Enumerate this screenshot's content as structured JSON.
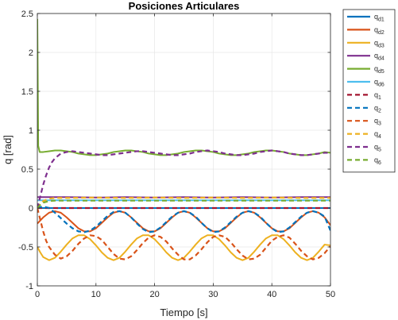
{
  "chart_data": {
    "type": "line",
    "title": "Posiciones Articulares",
    "xlabel": "Tiempo [s]",
    "ylabel": "q [rad]",
    "xlim": [
      0,
      50
    ],
    "ylim": [
      -1,
      2.5
    ],
    "xticks": [
      0,
      10,
      20,
      30,
      40,
      50
    ],
    "xtick_labels": [
      "0",
      "10",
      "20",
      "30",
      "40",
      "50"
    ],
    "yticks": [
      -1,
      -0.5,
      0,
      0.5,
      1,
      1.5,
      2,
      2.5
    ],
    "ytick_labels": [
      "-1",
      "-0.5",
      "0",
      "0.5",
      "1",
      "1.5",
      "2",
      "2.5"
    ],
    "grid": true,
    "legend_position": "outside-right",
    "series": [
      {
        "name": "q",
        "sub": "d1",
        "color": "#0072BD",
        "style": "solid",
        "x": [
          0,
          50
        ],
        "y": [
          0,
          0
        ]
      },
      {
        "name": "q",
        "sub": "d2",
        "color": "#D95319",
        "style": "solid",
        "x": [
          0,
          0.5,
          1,
          2,
          3,
          4,
          5,
          6,
          7,
          8,
          9,
          10,
          11,
          12,
          13,
          14,
          15,
          16,
          17,
          18,
          19,
          20,
          21,
          22,
          23,
          24,
          25,
          26,
          27,
          28,
          29,
          30,
          31,
          32,
          33,
          34,
          35,
          36,
          37,
          38,
          39,
          40,
          41,
          42,
          43,
          44,
          45,
          46,
          47,
          48,
          49,
          50
        ],
        "y": [
          -0.2,
          -0.16,
          -0.12,
          -0.06,
          -0.04,
          -0.06,
          -0.12,
          -0.19,
          -0.26,
          -0.3,
          -0.3,
          -0.26,
          -0.19,
          -0.12,
          -0.06,
          -0.04,
          -0.06,
          -0.12,
          -0.19,
          -0.26,
          -0.3,
          -0.3,
          -0.26,
          -0.19,
          -0.12,
          -0.06,
          -0.04,
          -0.06,
          -0.12,
          -0.19,
          -0.26,
          -0.3,
          -0.3,
          -0.26,
          -0.19,
          -0.12,
          -0.06,
          -0.04,
          -0.06,
          -0.12,
          -0.19,
          -0.26,
          -0.3,
          -0.3,
          -0.26,
          -0.19,
          -0.12,
          -0.06,
          -0.04,
          -0.06,
          -0.12,
          -0.22
        ]
      },
      {
        "name": "q",
        "sub": "d3",
        "color": "#EDB120",
        "style": "solid",
        "x": [
          0,
          0.5,
          1,
          2,
          3,
          4,
          5,
          6,
          7,
          8,
          9,
          10,
          11,
          12,
          13,
          14,
          15,
          16,
          17,
          18,
          19,
          20,
          21,
          22,
          23,
          24,
          25,
          26,
          27,
          28,
          29,
          30,
          31,
          32,
          33,
          34,
          35,
          36,
          37,
          38,
          39,
          40,
          41,
          42,
          43,
          44,
          45,
          46,
          47,
          48,
          49,
          50
        ],
        "y": [
          -0.5,
          -0.57,
          -0.63,
          -0.67,
          -0.64,
          -0.56,
          -0.47,
          -0.39,
          -0.35,
          -0.35,
          -0.4,
          -0.48,
          -0.57,
          -0.64,
          -0.67,
          -0.64,
          -0.56,
          -0.47,
          -0.39,
          -0.35,
          -0.35,
          -0.4,
          -0.48,
          -0.57,
          -0.64,
          -0.67,
          -0.64,
          -0.56,
          -0.47,
          -0.39,
          -0.35,
          -0.35,
          -0.4,
          -0.48,
          -0.57,
          -0.64,
          -0.67,
          -0.64,
          -0.56,
          -0.47,
          -0.39,
          -0.35,
          -0.35,
          -0.4,
          -0.48,
          -0.57,
          -0.64,
          -0.67,
          -0.64,
          -0.56,
          -0.47,
          -0.48
        ]
      },
      {
        "name": "q",
        "sub": "d4",
        "color": "#7E2F8E",
        "style": "solid",
        "x": [
          0,
          5,
          10,
          15,
          20,
          25,
          30,
          35,
          40,
          45,
          50
        ],
        "y": [
          0.14,
          0.14,
          0.135,
          0.14,
          0.135,
          0.14,
          0.135,
          0.14,
          0.135,
          0.14,
          0.14
        ]
      },
      {
        "name": "q",
        "sub": "d5",
        "color": "#77AC30",
        "style": "solid",
        "x": [
          0,
          0.15,
          0.4,
          1,
          2,
          3,
          4,
          5,
          6,
          7,
          8,
          9,
          10,
          11,
          12,
          13,
          14,
          15,
          16,
          17,
          18,
          19,
          20,
          21,
          22,
          23,
          24,
          25,
          26,
          27,
          28,
          29,
          30,
          31,
          32,
          33,
          34,
          35,
          36,
          37,
          38,
          39,
          40,
          41,
          42,
          43,
          44,
          45,
          46,
          47,
          48,
          49,
          50
        ],
        "y": [
          2.43,
          0.8,
          0.72,
          0.72,
          0.73,
          0.74,
          0.74,
          0.73,
          0.72,
          0.7,
          0.69,
          0.68,
          0.68,
          0.69,
          0.7,
          0.72,
          0.73,
          0.74,
          0.74,
          0.73,
          0.72,
          0.7,
          0.69,
          0.68,
          0.68,
          0.69,
          0.7,
          0.72,
          0.73,
          0.74,
          0.74,
          0.73,
          0.72,
          0.7,
          0.69,
          0.68,
          0.68,
          0.69,
          0.7,
          0.72,
          0.73,
          0.74,
          0.74,
          0.73,
          0.72,
          0.7,
          0.69,
          0.68,
          0.68,
          0.69,
          0.7,
          0.72,
          0.71
        ]
      },
      {
        "name": "q",
        "sub": "d6",
        "color": "#4DBEEE",
        "style": "solid",
        "x": [
          0,
          10,
          20,
          30,
          40,
          50
        ],
        "y": [
          0.1,
          0.1,
          0.1,
          0.1,
          0.1,
          0.1
        ]
      },
      {
        "name": "q",
        "sub": "1",
        "color": "#A2142F",
        "style": "dashed",
        "x": [
          0,
          50
        ],
        "y": [
          0,
          0
        ]
      },
      {
        "name": "q",
        "sub": "2",
        "color": "#0072BD",
        "style": "dashed",
        "x": [
          0,
          1,
          2,
          3,
          4,
          5,
          6,
          7,
          8,
          9,
          10,
          11,
          12,
          13,
          14,
          15,
          16,
          17,
          18,
          19,
          20,
          21,
          22,
          23,
          24,
          25,
          26,
          27,
          28,
          29,
          30,
          31,
          32,
          33,
          34,
          35,
          36,
          37,
          38,
          39,
          40,
          41,
          42,
          43,
          44,
          45,
          46,
          47,
          48,
          49,
          50
        ],
        "y": [
          0,
          0.02,
          0.0,
          -0.06,
          -0.13,
          -0.2,
          -0.26,
          -0.3,
          -0.31,
          -0.29,
          -0.24,
          -0.17,
          -0.1,
          -0.05,
          -0.04,
          -0.06,
          -0.12,
          -0.2,
          -0.27,
          -0.31,
          -0.3,
          -0.25,
          -0.18,
          -0.11,
          -0.06,
          -0.04,
          -0.06,
          -0.11,
          -0.19,
          -0.26,
          -0.31,
          -0.3,
          -0.25,
          -0.18,
          -0.11,
          -0.06,
          -0.04,
          -0.06,
          -0.11,
          -0.19,
          -0.26,
          -0.31,
          -0.3,
          -0.25,
          -0.18,
          -0.11,
          -0.06,
          -0.04,
          -0.06,
          -0.11,
          -0.29
        ]
      },
      {
        "name": "q",
        "sub": "3",
        "color": "#D95319",
        "style": "dashed",
        "x": [
          0,
          0.5,
          1,
          1.5,
          2,
          3,
          4,
          5,
          6,
          7,
          8,
          9,
          10,
          11,
          12,
          13,
          14,
          15,
          16,
          17,
          18,
          19,
          20,
          21,
          22,
          23,
          24,
          25,
          26,
          27,
          28,
          29,
          30,
          31,
          32,
          33,
          34,
          35,
          36,
          37,
          38,
          39,
          40,
          41,
          42,
          43,
          44,
          45,
          46,
          47,
          48,
          49,
          50
        ],
        "y": [
          0,
          -0.15,
          -0.3,
          -0.42,
          -0.5,
          -0.6,
          -0.65,
          -0.62,
          -0.55,
          -0.46,
          -0.39,
          -0.35,
          -0.36,
          -0.41,
          -0.5,
          -0.59,
          -0.65,
          -0.66,
          -0.62,
          -0.54,
          -0.45,
          -0.38,
          -0.35,
          -0.37,
          -0.43,
          -0.52,
          -0.6,
          -0.66,
          -0.66,
          -0.61,
          -0.53,
          -0.44,
          -0.37,
          -0.35,
          -0.37,
          -0.44,
          -0.53,
          -0.61,
          -0.66,
          -0.65,
          -0.6,
          -0.51,
          -0.42,
          -0.37,
          -0.35,
          -0.38,
          -0.46,
          -0.55,
          -0.62,
          -0.66,
          -0.64,
          -0.58,
          -0.49
        ]
      },
      {
        "name": "q",
        "sub": "4",
        "color": "#EDB120",
        "style": "dashed",
        "x": [
          0,
          0.5,
          1,
          2,
          3,
          4,
          5,
          10,
          15,
          20,
          25,
          30,
          35,
          40,
          45,
          50
        ],
        "y": [
          0,
          0.05,
          0.09,
          0.12,
          0.13,
          0.13,
          0.13,
          0.135,
          0.13,
          0.135,
          0.13,
          0.135,
          0.13,
          0.135,
          0.13,
          0.13
        ]
      },
      {
        "name": "q",
        "sub": "5",
        "color": "#7E2F8E",
        "style": "dashed",
        "x": [
          0,
          0.5,
          1,
          1.5,
          2,
          2.5,
          3,
          3.5,
          4,
          5,
          6,
          7,
          8,
          9,
          10,
          11,
          12,
          13,
          14,
          15,
          16,
          17,
          18,
          19,
          20,
          21,
          22,
          23,
          24,
          25,
          26,
          27,
          28,
          29,
          30,
          31,
          32,
          33,
          34,
          35,
          36,
          37,
          38,
          39,
          40,
          41,
          42,
          43,
          44,
          45,
          46,
          47,
          48,
          49,
          50
        ],
        "y": [
          0,
          0.15,
          0.3,
          0.42,
          0.52,
          0.59,
          0.64,
          0.67,
          0.7,
          0.72,
          0.73,
          0.72,
          0.71,
          0.7,
          0.69,
          0.68,
          0.68,
          0.69,
          0.7,
          0.71,
          0.72,
          0.73,
          0.73,
          0.72,
          0.71,
          0.7,
          0.69,
          0.68,
          0.68,
          0.69,
          0.7,
          0.72,
          0.73,
          0.74,
          0.73,
          0.72,
          0.7,
          0.69,
          0.68,
          0.68,
          0.69,
          0.7,
          0.72,
          0.73,
          0.74,
          0.73,
          0.72,
          0.7,
          0.69,
          0.68,
          0.68,
          0.69,
          0.7,
          0.71,
          0.71
        ]
      },
      {
        "name": "q",
        "sub": "6",
        "color": "#77AC30",
        "style": "dashed",
        "x": [
          0,
          0.5,
          1,
          2,
          3,
          4,
          5,
          10,
          15,
          20,
          25,
          30,
          35,
          40,
          45,
          50
        ],
        "y": [
          0,
          0.04,
          0.07,
          0.09,
          0.095,
          0.095,
          0.095,
          0.095,
          0.095,
          0.095,
          0.095,
          0.095,
          0.095,
          0.095,
          0.095,
          0.095
        ]
      }
    ]
  }
}
